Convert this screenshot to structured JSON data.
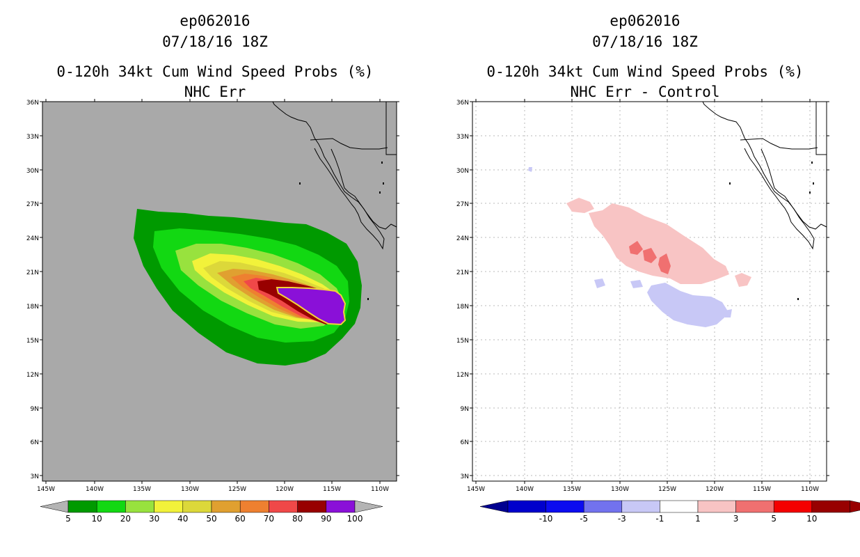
{
  "panels": [
    {
      "id": "left",
      "title_line1": "ep062016",
      "title_line2": "07/18/16 18Z",
      "title_line3": "0-120h 34kt Cum Wind Speed Probs (%)",
      "title_line4": "NHC Err",
      "background": "#a9a9a9",
      "legend": {
        "colors": [
          "#009a00",
          "#12d812",
          "#98e23e",
          "#f2f23a",
          "#dcd83a",
          "#e0a030",
          "#ee8030",
          "#f04848",
          "#980000",
          "#8a10d8"
        ],
        "labels": [
          "5",
          "10",
          "20",
          "30",
          "40",
          "50",
          "60",
          "70",
          "80",
          "90",
          "100"
        ],
        "left_arrow": "#b4b4b4",
        "right_arrow": "#b4b4b4"
      }
    },
    {
      "id": "right",
      "title_line1": "ep062016",
      "title_line2": "07/18/16 18Z",
      "title_line3": "0-120h 34kt Cum Wind Speed Probs (%)",
      "title_line4": "NHC Err - Control",
      "background": "#ffffff",
      "legend": {
        "colors": [
          "#0000cc",
          "#0c0cf0",
          "#7272ee",
          "#c8c8f6",
          "#ffffff",
          "#f8c4c4",
          "#f07070",
          "#f40000",
          "#980000"
        ],
        "labels": [
          "-10",
          "-5",
          "-3",
          "-1",
          "1",
          "3",
          "5",
          "10"
        ],
        "left_arrow": "#000090",
        "right_arrow": "#980000"
      }
    }
  ],
  "map": {
    "lat_labels": [
      "36N",
      "33N",
      "30N",
      "27N",
      "24N",
      "21N",
      "18N",
      "15N",
      "12N",
      "9N",
      "6N",
      "3N"
    ],
    "lon_labels": [
      "145W",
      "140W",
      "135W",
      "130W",
      "125W",
      "120W",
      "115W",
      "110W"
    ]
  }
}
